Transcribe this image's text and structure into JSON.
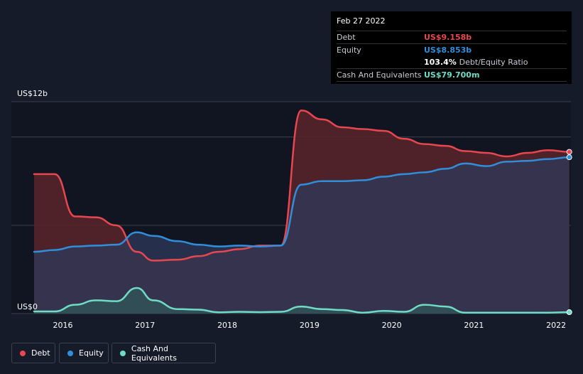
{
  "tooltip": {
    "date": "Feb 27 2022",
    "debt_label": "Debt",
    "debt_value": "US$9.158b",
    "equity_label": "Equity",
    "equity_value": "US$8.853b",
    "ratio_value": "103.4%",
    "ratio_label": "Debt/Equity Ratio",
    "cash_label": "Cash And Equivalents",
    "cash_value": "US$79.700m"
  },
  "legend": {
    "debt": "Debt",
    "equity": "Equity",
    "cash": "Cash And Equivalents"
  },
  "colors": {
    "debt": "#e8474f",
    "equity": "#2f8fdb",
    "cash": "#6fdcc6",
    "background": "#151b29"
  },
  "chart_data": {
    "type": "area",
    "title": "",
    "xlabel": "",
    "ylabel": "",
    "y_axis_top_label": "US$12b",
    "y_axis_bottom_label": "US$0",
    "ylim": [
      0,
      12
    ],
    "xlim": [
      2015.65,
      2022.18
    ],
    "x_ticks": [
      {
        "value": 2016,
        "label": "2016"
      },
      {
        "value": 2017,
        "label": "2017"
      },
      {
        "value": 2018,
        "label": "2018"
      },
      {
        "value": 2019,
        "label": "2019"
      },
      {
        "value": 2020,
        "label": "2020"
      },
      {
        "value": 2021,
        "label": "2021"
      },
      {
        "value": 2022,
        "label": "2022"
      }
    ],
    "series": [
      {
        "name": "Debt",
        "unit": "US$b",
        "points": [
          [
            2015.65,
            7.9
          ],
          [
            2015.9,
            7.9
          ],
          [
            2016.15,
            5.5
          ],
          [
            2016.4,
            5.45
          ],
          [
            2016.65,
            5.0
          ],
          [
            2016.9,
            3.5
          ],
          [
            2017.1,
            3.0
          ],
          [
            2017.4,
            3.05
          ],
          [
            2017.65,
            3.25
          ],
          [
            2017.9,
            3.5
          ],
          [
            2018.15,
            3.65
          ],
          [
            2018.4,
            3.85
          ],
          [
            2018.65,
            3.85
          ],
          [
            2018.9,
            11.5
          ],
          [
            2019.15,
            11.0
          ],
          [
            2019.4,
            10.55
          ],
          [
            2019.65,
            10.45
          ],
          [
            2019.9,
            10.35
          ],
          [
            2020.15,
            9.9
          ],
          [
            2020.4,
            9.6
          ],
          [
            2020.65,
            9.5
          ],
          [
            2020.9,
            9.2
          ],
          [
            2021.15,
            9.1
          ],
          [
            2021.4,
            8.9
          ],
          [
            2021.65,
            9.1
          ],
          [
            2021.9,
            9.25
          ],
          [
            2022.16,
            9.158
          ]
        ]
      },
      {
        "name": "Equity",
        "unit": "US$b",
        "points": [
          [
            2015.65,
            3.5
          ],
          [
            2015.9,
            3.6
          ],
          [
            2016.15,
            3.8
          ],
          [
            2016.4,
            3.85
          ],
          [
            2016.65,
            3.9
          ],
          [
            2016.9,
            4.6
          ],
          [
            2017.1,
            4.4
          ],
          [
            2017.4,
            4.1
          ],
          [
            2017.65,
            3.9
          ],
          [
            2017.9,
            3.8
          ],
          [
            2018.15,
            3.85
          ],
          [
            2018.4,
            3.8
          ],
          [
            2018.65,
            3.85
          ],
          [
            2018.9,
            7.3
          ],
          [
            2019.15,
            7.5
          ],
          [
            2019.4,
            7.5
          ],
          [
            2019.65,
            7.55
          ],
          [
            2019.9,
            7.75
          ],
          [
            2020.15,
            7.9
          ],
          [
            2020.4,
            8.0
          ],
          [
            2020.65,
            8.2
          ],
          [
            2020.9,
            8.5
          ],
          [
            2021.15,
            8.35
          ],
          [
            2021.4,
            8.6
          ],
          [
            2021.65,
            8.65
          ],
          [
            2021.9,
            8.75
          ],
          [
            2022.16,
            8.853
          ]
        ]
      },
      {
        "name": "Cash And Equivalents",
        "unit": "US$b",
        "points": [
          [
            2015.65,
            0.12
          ],
          [
            2015.9,
            0.12
          ],
          [
            2016.15,
            0.5
          ],
          [
            2016.4,
            0.75
          ],
          [
            2016.65,
            0.7
          ],
          [
            2016.9,
            1.45
          ],
          [
            2017.1,
            0.75
          ],
          [
            2017.4,
            0.25
          ],
          [
            2017.65,
            0.22
          ],
          [
            2017.9,
            0.07
          ],
          [
            2018.15,
            0.1
          ],
          [
            2018.4,
            0.08
          ],
          [
            2018.65,
            0.1
          ],
          [
            2018.9,
            0.4
          ],
          [
            2019.15,
            0.25
          ],
          [
            2019.4,
            0.2
          ],
          [
            2019.65,
            0.05
          ],
          [
            2019.9,
            0.15
          ],
          [
            2020.15,
            0.1
          ],
          [
            2020.4,
            0.5
          ],
          [
            2020.65,
            0.4
          ],
          [
            2020.9,
            0.05
          ],
          [
            2021.15,
            0.05
          ],
          [
            2021.4,
            0.05
          ],
          [
            2021.65,
            0.05
          ],
          [
            2021.9,
            0.05
          ],
          [
            2022.16,
            0.0797
          ]
        ]
      }
    ],
    "legend_position": "bottom-left",
    "grid": true
  }
}
